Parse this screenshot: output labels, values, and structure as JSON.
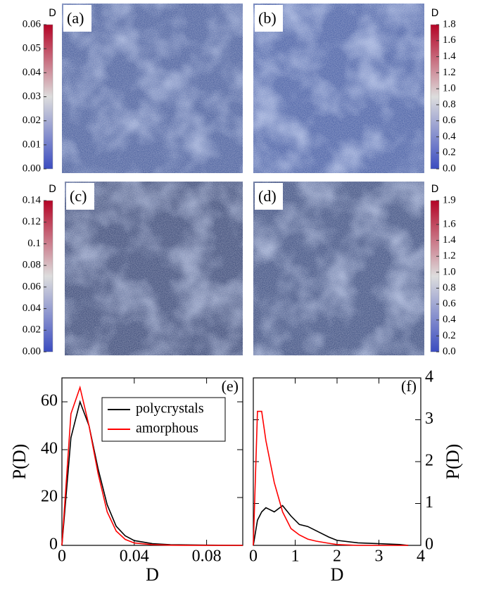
{
  "chart_data": [
    {
      "type": "image",
      "label": "(a)",
      "colorbar_title": "D",
      "clim": [
        0,
        0.06
      ],
      "cticks": [
        {
          "value": 0,
          "label": "0.00"
        },
        {
          "value": 0.01,
          "label": "0.01"
        },
        {
          "value": 0.02,
          "label": "0.02"
        },
        {
          "value": 0.03,
          "label": "0.03"
        },
        {
          "value": 0.04,
          "label": "0.04"
        },
        {
          "value": 0.05,
          "label": "0.05"
        },
        {
          "value": 0.06,
          "label": "0.06"
        }
      ]
    },
    {
      "type": "image",
      "label": "(b)",
      "colorbar_title": "D",
      "clim": [
        0,
        1.8
      ],
      "cticks": [
        {
          "value": 0,
          "label": "0.0"
        },
        0.2,
        0.4,
        0.6,
        0.8,
        {
          "value": 1,
          "label": "1.0"
        },
        1.2,
        1.4,
        1.6,
        1.8
      ]
    },
    {
      "type": "image",
      "label": "(c)",
      "colorbar_title": "D",
      "clim": [
        0,
        0.14
      ],
      "cticks": [
        {
          "value": 0,
          "label": "0.00"
        },
        0.02,
        0.04,
        0.06,
        0.08,
        0.1,
        0.12,
        0.14
      ]
    },
    {
      "type": "image",
      "label": "(d)",
      "colorbar_title": "D",
      "clim": [
        0,
        1.9
      ],
      "cticks": [
        {
          "value": 0,
          "label": "0.0"
        },
        0.2,
        0.4,
        0.6,
        0.8,
        {
          "value": 1,
          "label": "1.0"
        },
        1.2,
        1.4,
        1.6,
        1.9
      ]
    },
    {
      "type": "line",
      "label": "(e)",
      "x_label": "D",
      "y_label": "P(D)",
      "legend": "upper right",
      "xlim": [
        0,
        0.1
      ],
      "xticks": [
        0,
        0.04,
        0.08
      ],
      "ylim": [
        0,
        70
      ],
      "yticks": [
        0,
        20,
        40,
        60
      ],
      "x": [
        0,
        0.005,
        0.01,
        0.015,
        0.02,
        0.025,
        0.03,
        0.035,
        0.04,
        0.05,
        0.06,
        0.08,
        0.1
      ],
      "series": [
        {
          "name": "polycrystals",
          "color": "#000000",
          "values": [
            0,
            45,
            60,
            50,
            32,
            17,
            8,
            4,
            2,
            0.7,
            0.3,
            0.1,
            0
          ]
        },
        {
          "name": "amorphous",
          "color": "#ff0000",
          "values": [
            0,
            55,
            66,
            50,
            30,
            14,
            6,
            2.5,
            1,
            0.3,
            0.1,
            0,
            0
          ]
        }
      ]
    },
    {
      "type": "line",
      "label": "(f)",
      "x_label": "D",
      "y_label": "P(D)",
      "xlim": [
        0,
        4
      ],
      "xticks": [
        0,
        1,
        2,
        3,
        4
      ],
      "ylim": [
        0,
        4
      ],
      "yticks": [
        0,
        1,
        2,
        3,
        4
      ],
      "x": [
        0,
        0.1,
        0.2,
        0.3,
        0.5,
        0.7,
        0.9,
        1.1,
        1.3,
        1.5,
        1.8,
        2,
        2.5,
        3,
        3.5,
        3.7
      ],
      "series": [
        {
          "color": "#000000",
          "values": [
            0,
            0.6,
            0.8,
            0.9,
            0.8,
            0.95,
            0.7,
            0.5,
            0.45,
            0.35,
            0.2,
            0.12,
            0.06,
            0.04,
            0.02,
            0
          ]
        },
        {
          "color": "#ff0000",
          "values": [
            0,
            3.2,
            3.2,
            2.5,
            1.5,
            0.8,
            0.4,
            0.25,
            0.15,
            0.1,
            0.05,
            0.02,
            0,
            0,
            0,
            0
          ]
        }
      ]
    }
  ]
}
